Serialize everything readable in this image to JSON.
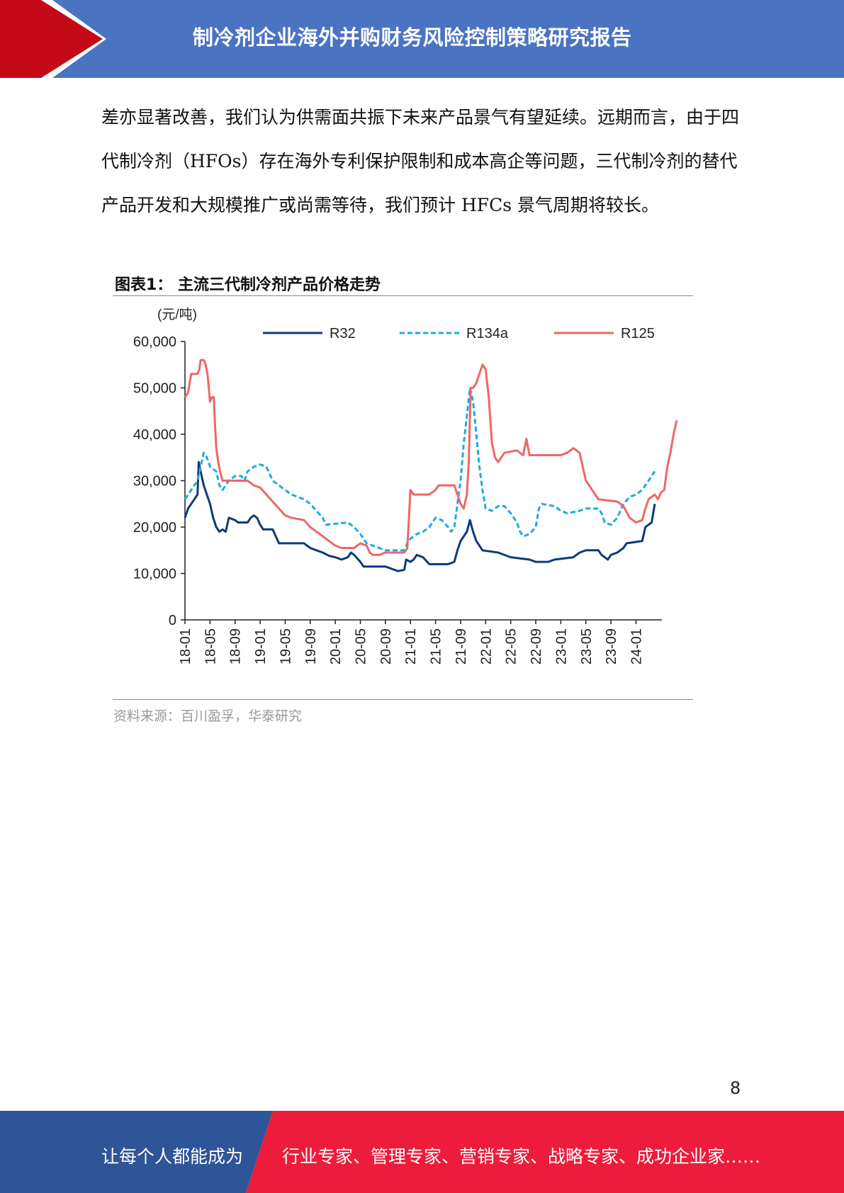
{
  "header": {
    "title": "制冷剂企业海外并购财务风险控制策略研究报告",
    "bar_color": "#4a73c2",
    "accent_color": "#c40a16"
  },
  "body": {
    "paragraph": "差亦显著改善，我们认为供需面共振下未来产品景气有望延续。远期而言，由于四代制冷剂（HFOs）存在海外专利保护限制和成本高企等问题，三代制冷剂的替代产品开发和大规模推广或尚需等待，我们预计 HFCs 景气周期将较长。"
  },
  "figure": {
    "title": "图表1：  主流三代制冷剂产品价格走势",
    "source": "资料来源：百川盈孚，华泰研究"
  },
  "chart_data": {
    "type": "line",
    "ylabel": "(元/吨)",
    "ylim": [
      0,
      60000
    ],
    "yticks": [
      "0",
      "10,000",
      "20,000",
      "30,000",
      "40,000",
      "50,000",
      "60,000"
    ],
    "xticks": [
      "18-01",
      "18-05",
      "18-09",
      "19-01",
      "19-05",
      "19-09",
      "20-01",
      "20-05",
      "20-09",
      "21-01",
      "21-05",
      "21-09",
      "22-01",
      "22-05",
      "22-09",
      "23-01",
      "23-05",
      "23-09",
      "24-01"
    ],
    "x_range_months": [
      0,
      75
    ],
    "legend_position": "top",
    "series": [
      {
        "name": "R32",
        "color": "#0d3a7a",
        "style": "solid",
        "points": [
          [
            0,
            22000
          ],
          [
            0.5,
            24000
          ],
          [
            1.5,
            26000
          ],
          [
            2,
            27000
          ],
          [
            2.2,
            34000
          ],
          [
            2.5,
            32000
          ],
          [
            3,
            29000
          ],
          [
            3.5,
            27000
          ],
          [
            4,
            25000
          ],
          [
            4.5,
            22000
          ],
          [
            5,
            20000
          ],
          [
            5.5,
            19000
          ],
          [
            6,
            19500
          ],
          [
            6.5,
            19000
          ],
          [
            7,
            22000
          ],
          [
            8,
            21500
          ],
          [
            8.5,
            21000
          ],
          [
            10,
            21000
          ],
          [
            10.5,
            22000
          ],
          [
            11,
            22500
          ],
          [
            11.5,
            22000
          ],
          [
            12,
            20500
          ],
          [
            12.5,
            19500
          ],
          [
            14,
            19500
          ],
          [
            14.5,
            18000
          ],
          [
            15,
            16500
          ],
          [
            19,
            16500
          ],
          [
            20,
            15500
          ],
          [
            21,
            15000
          ],
          [
            22,
            14500
          ],
          [
            23,
            13800
          ],
          [
            24,
            13500
          ],
          [
            25,
            13000
          ],
          [
            26,
            13500
          ],
          [
            26.5,
            14500
          ],
          [
            27,
            14000
          ],
          [
            28,
            12500
          ],
          [
            28.5,
            11500
          ],
          [
            32,
            11500
          ],
          [
            33,
            11000
          ],
          [
            34,
            10500
          ],
          [
            35,
            10800
          ],
          [
            35.3,
            13000
          ],
          [
            36,
            12500
          ],
          [
            36.5,
            13000
          ],
          [
            37,
            14000
          ],
          [
            38,
            13500
          ],
          [
            39,
            12000
          ],
          [
            42,
            12000
          ],
          [
            43,
            12500
          ],
          [
            43.5,
            15000
          ],
          [
            44,
            17000
          ],
          [
            45,
            19000
          ],
          [
            45.5,
            21500
          ],
          [
            46,
            19000
          ],
          [
            46.5,
            17000
          ],
          [
            47,
            16000
          ],
          [
            47.5,
            15000
          ],
          [
            50,
            14500
          ],
          [
            52,
            13500
          ],
          [
            55,
            13000
          ],
          [
            56,
            12500
          ],
          [
            58,
            12500
          ],
          [
            59,
            13000
          ],
          [
            62,
            13500
          ],
          [
            63,
            14500
          ],
          [
            64,
            15000
          ],
          [
            66,
            15000
          ],
          [
            66.5,
            14000
          ],
          [
            67,
            13500
          ],
          [
            67.5,
            13000
          ],
          [
            68,
            14000
          ],
          [
            69,
            14500
          ],
          [
            70,
            15500
          ],
          [
            70.5,
            16500
          ],
          [
            73,
            17000
          ],
          [
            73.5,
            20000
          ],
          [
            74,
            20500
          ],
          [
            74.5,
            21000
          ],
          [
            75,
            25000
          ]
        ]
      },
      {
        "name": "R134a",
        "color": "#1eaae6",
        "style": "dashed",
        "points": [
          [
            0,
            26000
          ],
          [
            0.5,
            27000
          ],
          [
            1,
            28000
          ],
          [
            2,
            30000
          ],
          [
            2.5,
            33000
          ],
          [
            3,
            36000
          ],
          [
            3.5,
            35000
          ],
          [
            4,
            33000
          ],
          [
            5,
            32000
          ],
          [
            5.5,
            29000
          ],
          [
            6,
            28000
          ],
          [
            7,
            30000
          ],
          [
            8,
            31000
          ],
          [
            9,
            31000
          ],
          [
            9.5,
            30000
          ],
          [
            10,
            32000
          ],
          [
            11,
            33000
          ],
          [
            12,
            33500
          ],
          [
            13,
            33000
          ],
          [
            14,
            30000
          ],
          [
            15,
            29000
          ],
          [
            16,
            28000
          ],
          [
            17,
            27000
          ],
          [
            18,
            26500
          ],
          [
            19,
            26000
          ],
          [
            20,
            25000
          ],
          [
            21,
            23500
          ],
          [
            22,
            22000
          ],
          [
            22.5,
            20500
          ],
          [
            26,
            21000
          ],
          [
            27,
            20000
          ],
          [
            28,
            18500
          ],
          [
            29,
            16500
          ],
          [
            30,
            16000
          ],
          [
            31,
            15500
          ],
          [
            32,
            15000
          ],
          [
            35,
            15000
          ],
          [
            35.5,
            16500
          ],
          [
            36,
            17500
          ],
          [
            36.5,
            18000
          ],
          [
            37,
            18500
          ],
          [
            38,
            19000
          ],
          [
            39,
            20000
          ],
          [
            40,
            22000
          ],
          [
            41,
            21500
          ],
          [
            42,
            20000
          ],
          [
            42.5,
            19000
          ],
          [
            43,
            20000
          ],
          [
            43.5,
            25000
          ],
          [
            44,
            30000
          ],
          [
            44.5,
            38000
          ],
          [
            45,
            44000
          ],
          [
            45.5,
            50000
          ],
          [
            46,
            47000
          ],
          [
            46.5,
            40000
          ],
          [
            47,
            33000
          ],
          [
            47.5,
            28000
          ],
          [
            48,
            24000
          ],
          [
            49,
            23500
          ],
          [
            50,
            24500
          ],
          [
            51,
            24500
          ],
          [
            52,
            23000
          ],
          [
            53,
            21000
          ],
          [
            53.5,
            19000
          ],
          [
            54,
            18000
          ],
          [
            55,
            18500
          ],
          [
            56,
            20000
          ],
          [
            56.5,
            24000
          ],
          [
            57,
            25000
          ],
          [
            59,
            24500
          ],
          [
            60,
            23500
          ],
          [
            61,
            23000
          ],
          [
            63,
            23500
          ],
          [
            64,
            24000
          ],
          [
            65,
            24000
          ],
          [
            66,
            24000
          ],
          [
            66.5,
            23000
          ],
          [
            67,
            21000
          ],
          [
            68,
            20500
          ],
          [
            69,
            22000
          ],
          [
            70,
            25000
          ],
          [
            71,
            26500
          ],
          [
            72,
            27000
          ],
          [
            73,
            28000
          ],
          [
            74,
            30000
          ],
          [
            74.5,
            31000
          ],
          [
            75,
            32000
          ]
        ]
      },
      {
        "name": "R125",
        "color": "#f06666",
        "style": "solid",
        "points": [
          [
            0,
            48000
          ],
          [
            0.5,
            49000
          ],
          [
            1,
            53000
          ],
          [
            2,
            53000
          ],
          [
            2.3,
            54000
          ],
          [
            2.5,
            56000
          ],
          [
            3,
            56000
          ],
          [
            3.3,
            55000
          ],
          [
            3.6,
            53000
          ],
          [
            4,
            47000
          ],
          [
            4.3,
            48000
          ],
          [
            4.6,
            48000
          ],
          [
            4.8,
            42000
          ],
          [
            5,
            37000
          ],
          [
            5.3,
            34000
          ],
          [
            5.6,
            32000
          ],
          [
            6,
            30000
          ],
          [
            10,
            30000
          ],
          [
            11,
            29000
          ],
          [
            12,
            28500
          ],
          [
            13,
            27000
          ],
          [
            14,
            25500
          ],
          [
            15,
            24000
          ],
          [
            16,
            22500
          ],
          [
            17,
            22000
          ],
          [
            19,
            21500
          ],
          [
            20,
            20000
          ],
          [
            21,
            19000
          ],
          [
            22,
            18000
          ],
          [
            23,
            17000
          ],
          [
            24,
            16000
          ],
          [
            25,
            15500
          ],
          [
            27,
            15500
          ],
          [
            28,
            16500
          ],
          [
            29,
            16000
          ],
          [
            29.5,
            14500
          ],
          [
            30,
            14000
          ],
          [
            31,
            14000
          ],
          [
            32,
            14500
          ],
          [
            35,
            14500
          ],
          [
            35.5,
            15500
          ],
          [
            36,
            28000
          ],
          [
            36.5,
            27000
          ],
          [
            39,
            27000
          ],
          [
            40,
            28000
          ],
          [
            40.5,
            29000
          ],
          [
            43,
            29000
          ],
          [
            43.5,
            27000
          ],
          [
            44,
            25000
          ],
          [
            44.5,
            24000
          ],
          [
            45,
            27000
          ],
          [
            45.3,
            34000
          ],
          [
            45.6,
            50000
          ],
          [
            46,
            50000
          ],
          [
            46.5,
            51000
          ],
          [
            47,
            53000
          ],
          [
            47.5,
            55000
          ],
          [
            48,
            54000
          ],
          [
            48.5,
            48000
          ],
          [
            49,
            38000
          ],
          [
            49.5,
            35000
          ],
          [
            50,
            34000
          ],
          [
            51,
            36000
          ],
          [
            53,
            36500
          ],
          [
            54,
            35500
          ],
          [
            54.5,
            39000
          ],
          [
            55,
            35500
          ],
          [
            59,
            35500
          ],
          [
            60,
            35500
          ],
          [
            61,
            36000
          ],
          [
            62,
            37000
          ],
          [
            63,
            36000
          ],
          [
            63.5,
            33000
          ],
          [
            64,
            30000
          ],
          [
            65,
            28000
          ],
          [
            66,
            26000
          ],
          [
            69,
            25500
          ],
          [
            70,
            24500
          ],
          [
            71,
            22000
          ],
          [
            72,
            21000
          ],
          [
            73,
            21500
          ],
          [
            73.5,
            24000
          ],
          [
            74,
            26000
          ],
          [
            75,
            27000
          ],
          [
            75.5,
            26000
          ],
          [
            76,
            27500
          ],
          [
            76.5,
            28000
          ],
          [
            77,
            33000
          ],
          [
            77.5,
            36000
          ],
          [
            78,
            40000
          ],
          [
            78.5,
            43000
          ]
        ]
      }
    ]
  },
  "page": {
    "number": "8"
  },
  "footer": {
    "left": "让每个人都能成为",
    "right": "行业专家、管理专家、营销专家、战略专家、成功企业家……",
    "left_color": "#2e5597",
    "right_color": "#ec1c3a"
  }
}
